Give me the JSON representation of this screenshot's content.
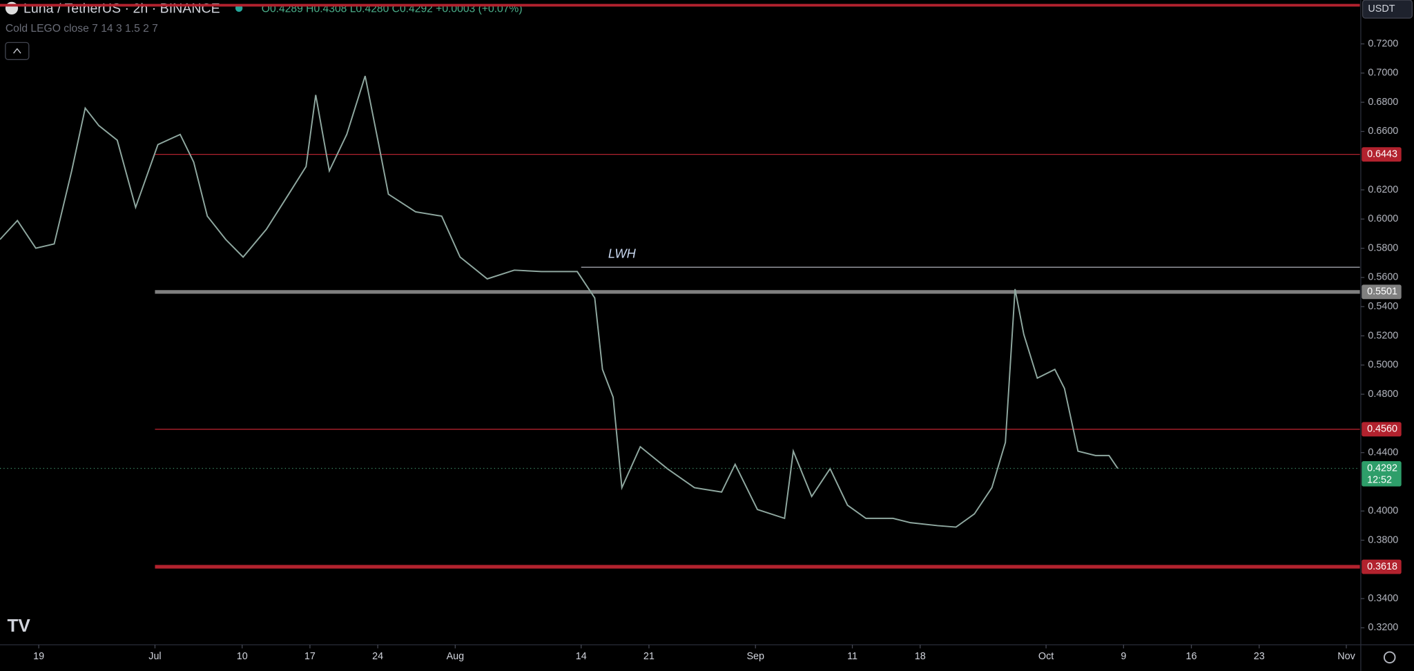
{
  "chart_data": {
    "type": "line",
    "title": "Luna / TetherUS · 2h · BINANCE",
    "ohlc": "O0.4289 H0.4308 L0.4280 C0.4292 +0.0003 (+0.07%)",
    "indicator": "Cold LEGO close 7 14 3 1.5 2 7",
    "currency": "USDT",
    "color": "#8fa8a0",
    "x": [
      166.0,
      167.8,
      169.7,
      171.6,
      173.4,
      174.8,
      176.2,
      178.1,
      180.0,
      182.3,
      184.6,
      186.0,
      187.4,
      189.3,
      191.1,
      193.5,
      195.8,
      197.6,
      198.6,
      200.0,
      201.8,
      203.7,
      205.1,
      206.1,
      208.9,
      211.6,
      213.5,
      216.3,
      219.1,
      221.9,
      225.6,
      227.4,
      228.2,
      229.3,
      230.2,
      232.1,
      234.9,
      237.7,
      240.5,
      241.9,
      244.2,
      247.0,
      247.9,
      249.8,
      251.7,
      253.5,
      255.4,
      258.2,
      260.0,
      262.8,
      264.7,
      266.6,
      268.4,
      269.8,
      270.8,
      271.7,
      273.1,
      274.9,
      275.9,
      277.3,
      279.1,
      280.5,
      281.4
    ],
    "values": [
      0.586,
      0.599,
      0.58,
      0.583,
      0.633,
      0.676,
      0.664,
      0.654,
      0.608,
      0.651,
      0.658,
      0.639,
      0.602,
      0.586,
      0.574,
      0.593,
      0.617,
      0.636,
      0.685,
      0.633,
      0.658,
      0.698,
      0.651,
      0.617,
      0.605,
      0.602,
      0.574,
      0.559,
      0.565,
      0.564,
      0.564,
      0.546,
      0.497,
      0.478,
      0.416,
      0.444,
      0.429,
      0.416,
      0.413,
      0.432,
      0.401,
      0.395,
      0.441,
      0.41,
      0.429,
      0.404,
      0.395,
      0.395,
      0.392,
      0.39,
      0.389,
      0.398,
      0.416,
      0.447,
      0.552,
      0.521,
      0.491,
      0.497,
      0.484,
      0.441,
      0.438,
      0.438,
      0.4292
    ],
    "xlim": [
      166,
      306.4
    ],
    "xticks": [
      {
        "value": 170,
        "label": "19"
      },
      {
        "value": 182,
        "label": "Jul"
      },
      {
        "value": 191,
        "label": "10"
      },
      {
        "value": 198,
        "label": "17"
      },
      {
        "value": 205,
        "label": "24"
      },
      {
        "value": 213,
        "label": "Aug"
      },
      {
        "value": 226,
        "label": "14"
      },
      {
        "value": 233,
        "label": "21"
      },
      {
        "value": 244,
        "label": "Sep"
      },
      {
        "value": 254,
        "label": "11"
      },
      {
        "value": 261,
        "label": "18"
      },
      {
        "value": 274,
        "label": "Oct"
      },
      {
        "value": 282,
        "label": "9"
      },
      {
        "value": 289,
        "label": "16"
      },
      {
        "value": 296,
        "label": "23"
      },
      {
        "value": 305,
        "label": "Nov"
      }
    ],
    "ylim": [
      0.309,
      0.75
    ],
    "yticks": [
      {
        "value": 0.32,
        "label": "0.3200"
      },
      {
        "value": 0.34,
        "label": "0.3400"
      },
      {
        "value": 0.38,
        "label": "0.3800"
      },
      {
        "value": 0.4,
        "label": "0.4000"
      },
      {
        "value": 0.44,
        "label": "0.4400"
      },
      {
        "value": 0.48,
        "label": "0.4800"
      },
      {
        "value": 0.5,
        "label": "0.5000"
      },
      {
        "value": 0.52,
        "label": "0.5200"
      },
      {
        "value": 0.54,
        "label": "0.5400"
      },
      {
        "value": 0.56,
        "label": "0.5600"
      },
      {
        "value": 0.58,
        "label": "0.5800"
      },
      {
        "value": 0.6,
        "label": "0.6000"
      },
      {
        "value": 0.62,
        "label": "0.6200"
      },
      {
        "value": 0.66,
        "label": "0.6600"
      },
      {
        "value": 0.68,
        "label": "0.6800"
      },
      {
        "value": 0.7,
        "label": "0.7000"
      },
      {
        "value": 0.72,
        "label": "0.7200"
      }
    ],
    "levels": [
      {
        "value": 0.7465,
        "start": 166,
        "color": "#b2222e",
        "width": 3,
        "axis_label": false
      },
      {
        "value": 0.6443,
        "start": 182,
        "color": "#b2222e",
        "width": 1
      },
      {
        "value": 0.5501,
        "start": 182,
        "color": "#808080",
        "width": 4
      },
      {
        "value": 0.456,
        "label": "0.4560",
        "start": 182,
        "color": "#b2222e",
        "width": 1
      },
      {
        "value": 0.3618,
        "start": 182,
        "color": "#b2222e",
        "width": 4
      }
    ],
    "annotations": [
      {
        "text": "LWH",
        "value": 0.567,
        "start": 226
      }
    ],
    "last_price": 0.4292,
    "countdown": "12:52"
  }
}
